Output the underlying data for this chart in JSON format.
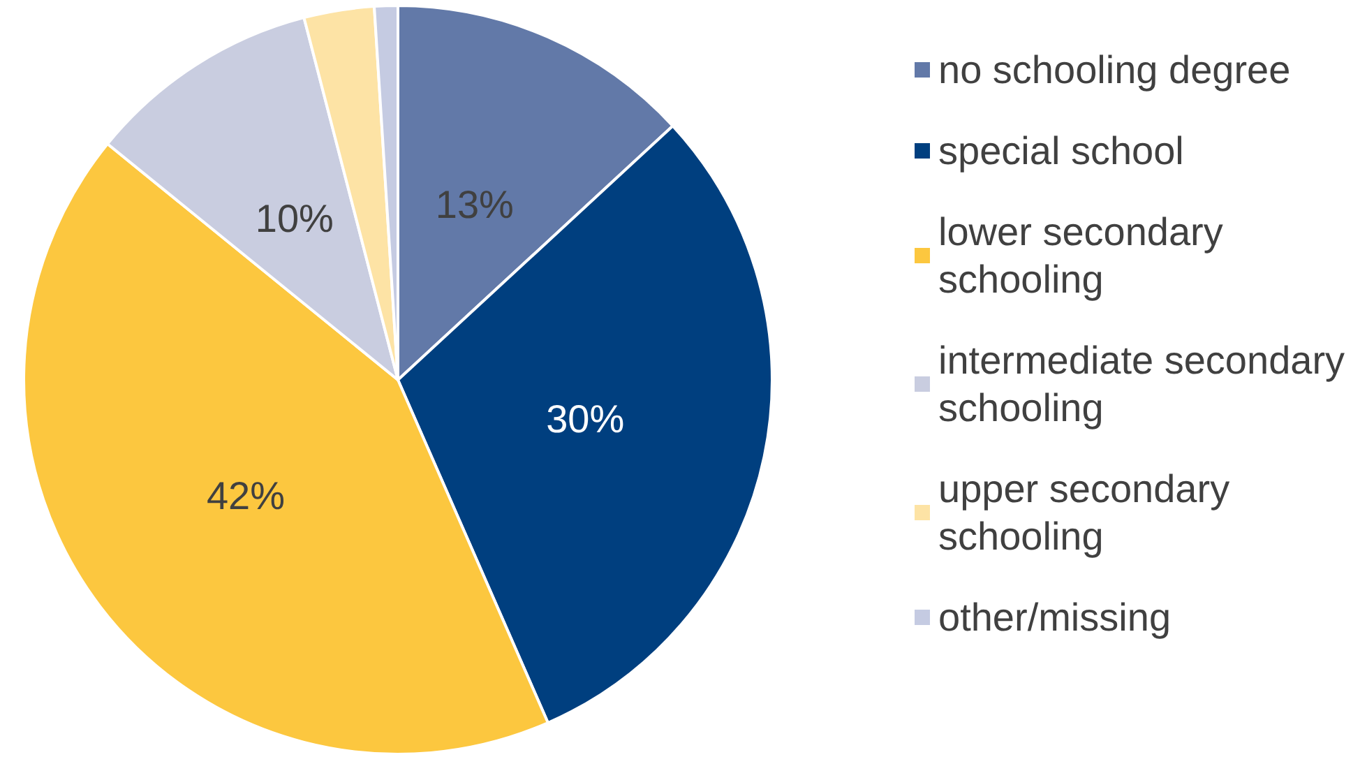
{
  "chart_data": {
    "type": "pie",
    "categories": [
      "no schooling degree",
      "special school",
      "lower secondary schooling",
      "intermediate secondary schooling",
      "upper secondary schooling",
      "other/missing"
    ],
    "values": [
      13,
      30,
      42,
      10,
      3,
      1
    ],
    "value_labels": [
      "13%",
      "30%",
      "42%",
      "10%",
      null,
      null
    ],
    "colors": [
      "#6279a8",
      "#003f7f",
      "#fcc73f",
      "#c9cde0",
      "#fde3a5",
      "#c5cbe2"
    ],
    "legend": "right"
  }
}
